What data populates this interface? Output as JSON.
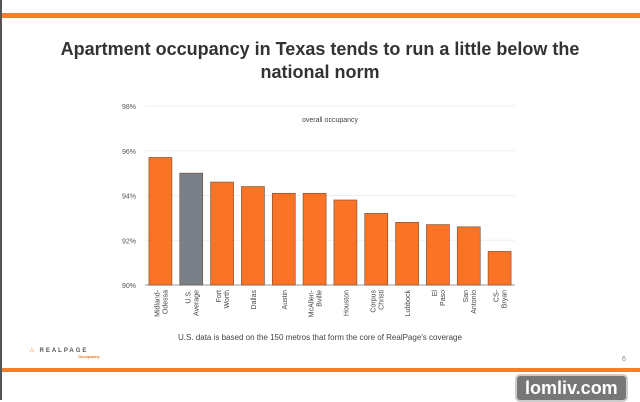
{
  "title": "Apartment occupancy in Texas tends to run a little below the national norm",
  "note": "U.S. data is based on the 150 metros that form the core of RealPage's coverage",
  "page_number": "6",
  "logo": {
    "name": "REALPAGE",
    "sub": "Occupancy"
  },
  "watermark": "lomliv.com",
  "colors": {
    "accent": "#f07f2e",
    "bar": "#fb7325",
    "us_bar": "#7a8088"
  },
  "chart_data": {
    "type": "bar",
    "title": "overall occupancy",
    "categories": [
      "Midland-Odessa",
      "U.S. Average",
      "Fort Worth",
      "Dallas",
      "Austin",
      "McAllen-Bville",
      "Houston",
      "Corpus Christi",
      "Lubbock",
      "El Paso",
      "San Antonio",
      "CS-Bryan"
    ],
    "values": [
      95.7,
      95.0,
      94.6,
      94.4,
      94.1,
      94.1,
      93.8,
      93.2,
      92.8,
      92.7,
      92.6,
      91.5
    ],
    "highlight": "U.S. Average",
    "ylim": [
      90,
      98
    ],
    "yticks": [
      "90%",
      "92%",
      "94%",
      "96%",
      "98%"
    ],
    "grid": true
  }
}
